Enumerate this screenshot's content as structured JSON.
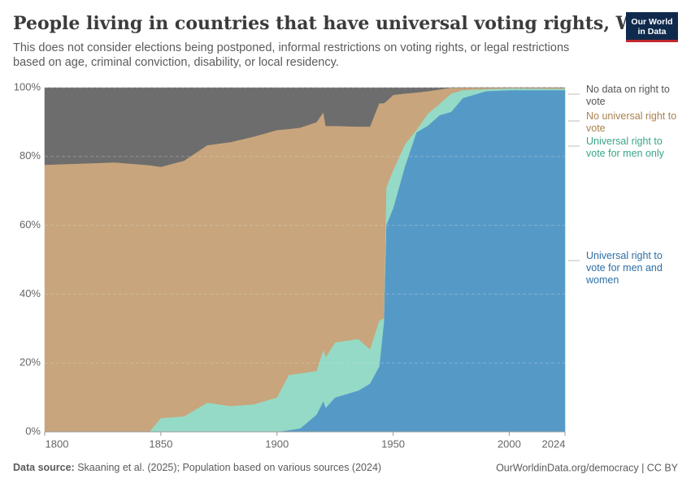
{
  "logo": [
    "Our World",
    "in Data"
  ],
  "chart_data": {
    "type": "stacked-area",
    "title": "People living in countries that have universal voting rights, World",
    "subtitle": "This does not consider elections being postponed, informal restrictions on voting rights, or legal restrictions based on age, criminal conviction, disability, or local residency.",
    "x": [
      1800,
      1830,
      1845,
      1850,
      1860,
      1870,
      1880,
      1890,
      1900,
      1905,
      1910,
      1917,
      1920,
      1921,
      1925,
      1935,
      1940,
      1944,
      1946,
      1947,
      1950,
      1955,
      1960,
      1965,
      1970,
      1975,
      1980,
      1990,
      2000,
      2024
    ],
    "series": [
      {
        "name": "Universal right to vote for men and women",
        "color": "#559ac7",
        "values": [
          0,
          0,
          0,
          0,
          0,
          0,
          0,
          0,
          0,
          0.5,
          1,
          5,
          9,
          7,
          10,
          12,
          14,
          19,
          32,
          60,
          65,
          77,
          87,
          89,
          92,
          93,
          97,
          99,
          99.3,
          99.3
        ]
      },
      {
        "name": "Universal right to vote for men only",
        "color": "#95dac6",
        "values": [
          0,
          0,
          0,
          4,
          4.5,
          8.5,
          7.5,
          8,
          10,
          16,
          16,
          12.7,
          15,
          14.7,
          16,
          15,
          10,
          13.3,
          1,
          11,
          11,
          6.5,
          0.7,
          3.5,
          3.3,
          5.3,
          2.3,
          0.6,
          0.5,
          0.4
        ]
      },
      {
        "name": "No universal right to vote",
        "color": "#c8a57c",
        "values": [
          77.6,
          78.3,
          77.5,
          73,
          74.3,
          74.8,
          76.7,
          77.8,
          77.7,
          71.5,
          71.4,
          72.3,
          68.9,
          67.2,
          62.9,
          61.7,
          64.7,
          63.2,
          62.5,
          25,
          21.9,
          14.8,
          10.9,
          6.5,
          4.2,
          1.7,
          0.7,
          0.4,
          0.2,
          0.3
        ]
      },
      {
        "name": "No data on right to vote",
        "color": "#6d6d6d",
        "values": [
          22.4,
          21.7,
          22.5,
          23,
          21.2,
          16.7,
          15.8,
          14.2,
          12.3,
          12,
          11.6,
          10,
          7.1,
          11.1,
          11.1,
          11.3,
          11.3,
          4.5,
          4.5,
          4,
          2.1,
          1.7,
          1.4,
          1,
          0.5,
          0,
          0,
          0,
          0,
          0
        ]
      }
    ],
    "xlim": [
      1800,
      2024
    ],
    "xticks": [
      1800,
      1850,
      1900,
      1950,
      2000,
      2024
    ],
    "ylim": [
      0,
      100
    ],
    "yticks": [
      {
        "value": 0,
        "label": "0%"
      },
      {
        "value": 20,
        "label": "20%"
      },
      {
        "value": 40,
        "label": "40%"
      },
      {
        "value": 60,
        "label": "60%"
      },
      {
        "value": 80,
        "label": "80%"
      },
      {
        "value": 100,
        "label": "100%"
      }
    ],
    "grid": true
  },
  "footer": {
    "source_label": "Data source:",
    "source": "Skaaning et al. (2025); Population based on various sources (2024)",
    "url_license": "OurWorldinData.org/democracy | CC BY"
  }
}
